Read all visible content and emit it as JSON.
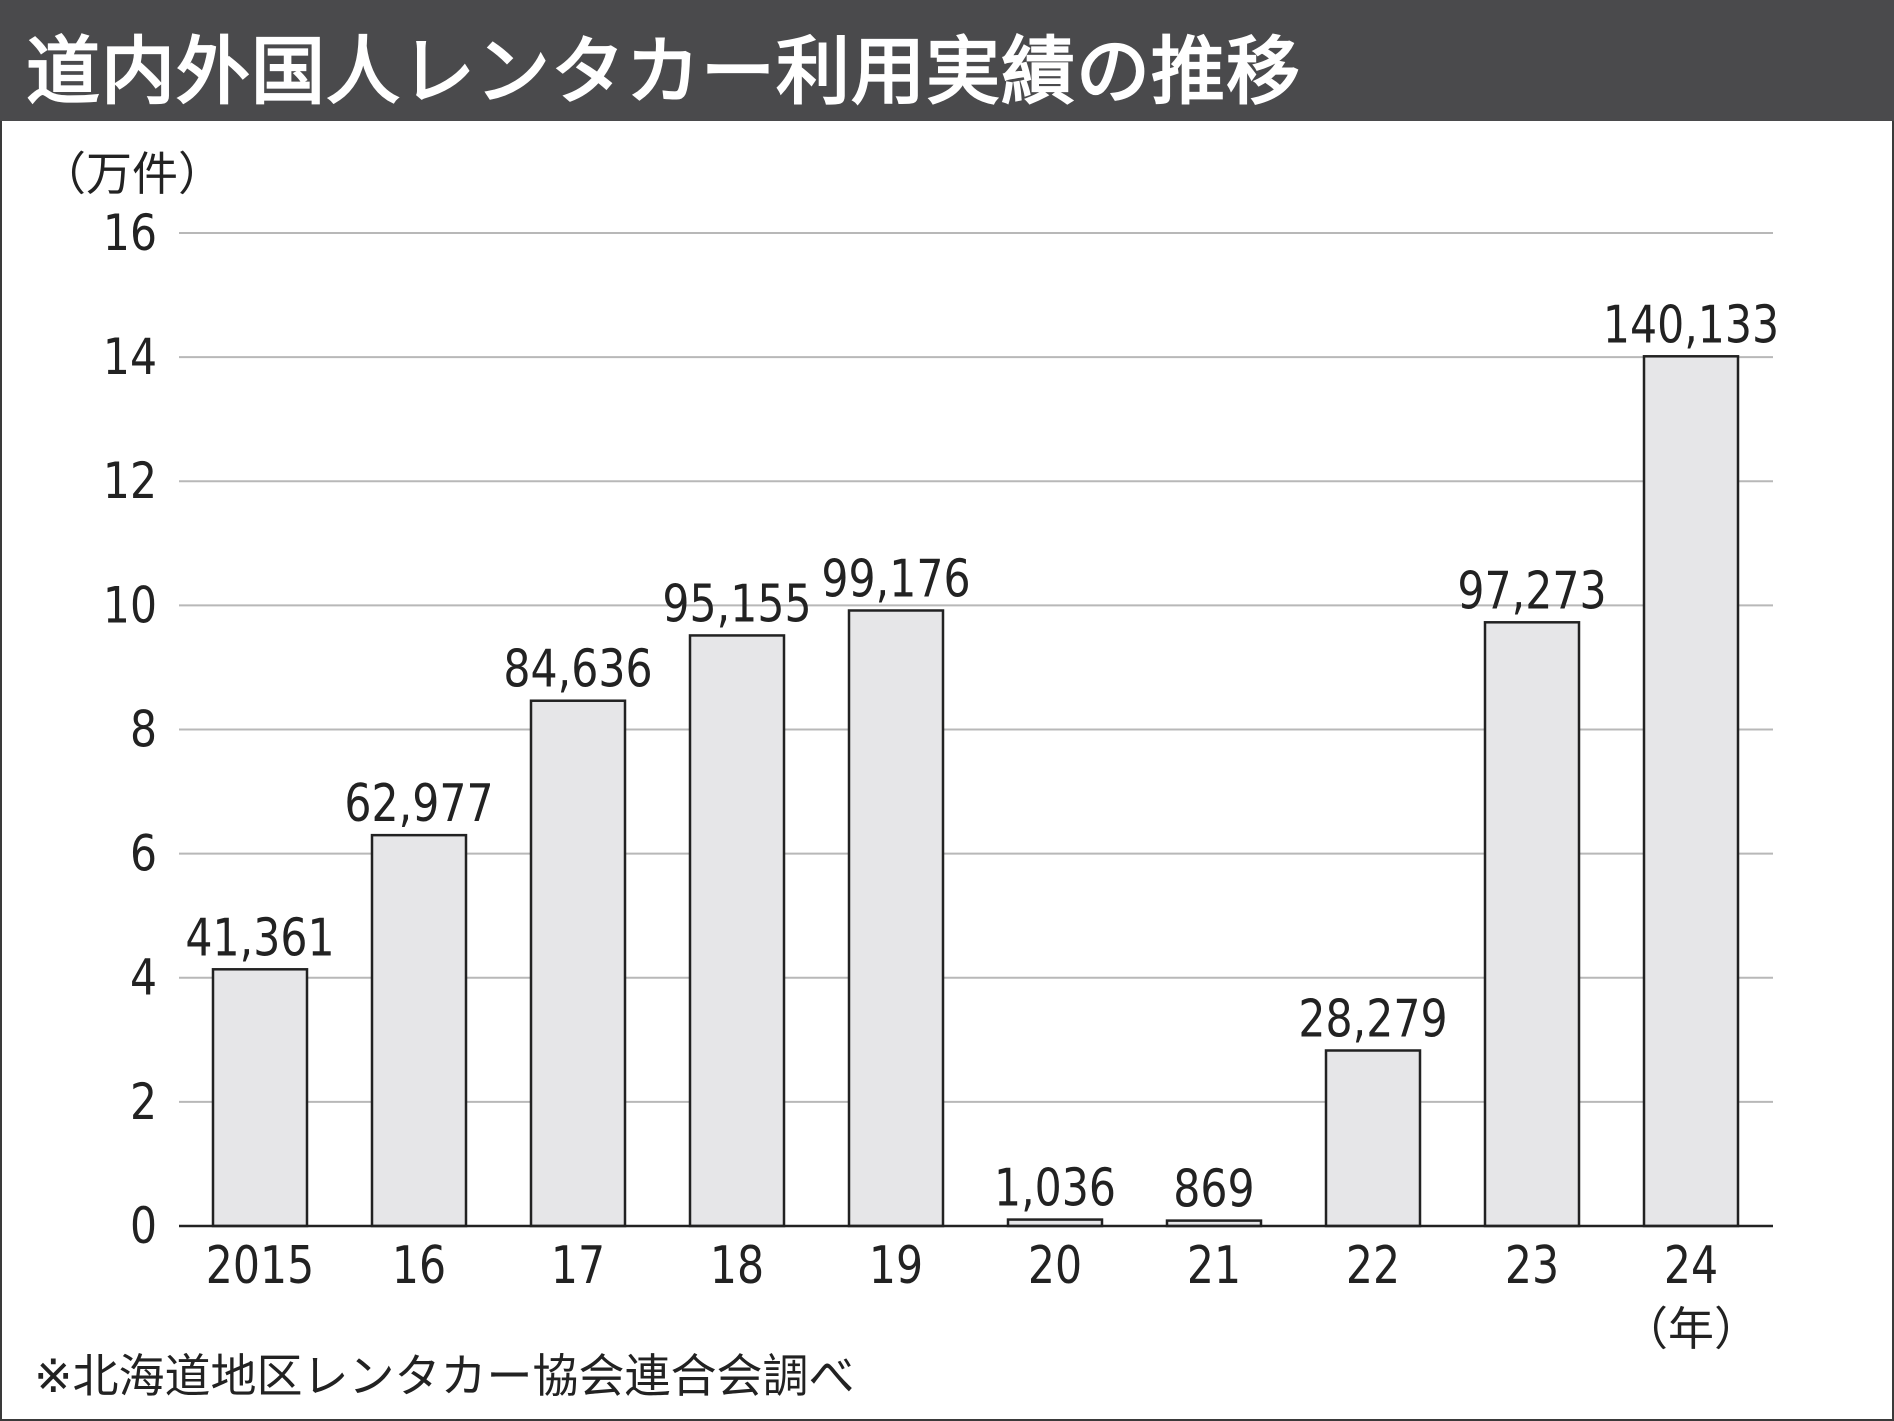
{
  "chart_data": {
    "type": "bar",
    "title": "道内外国人レンタカー利用実績の推移",
    "ylabel": "（万件）",
    "xlabel": "（年）",
    "categories": [
      "2015",
      "16",
      "17",
      "18",
      "19",
      "20",
      "21",
      "22",
      "23",
      "24"
    ],
    "values": [
      41361,
      62977,
      84636,
      95155,
      99176,
      1036,
      869,
      28279,
      97273,
      140133
    ],
    "data_labels": [
      "41,361",
      "62,977",
      "84,636",
      "95,155",
      "99,176",
      "1,036",
      "869",
      "28,279",
      "97,273",
      "140,133"
    ],
    "value_scale": 10000,
    "ylim": [
      0,
      16
    ],
    "yticks": [
      "0",
      "2",
      "4",
      "6",
      "8",
      "10",
      "12",
      "14",
      "16"
    ],
    "grid": true,
    "source": "※北海道地区レンタカー協会連合会調べ",
    "colors": {
      "bar": "#e6e6e8",
      "bar_stroke": "#222222",
      "grid": "#b8b8b8",
      "titlebar": "#4a4a4c"
    }
  }
}
